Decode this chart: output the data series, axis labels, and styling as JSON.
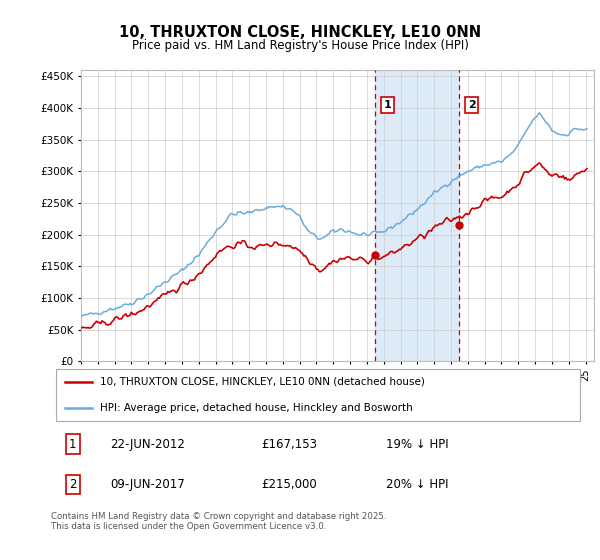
{
  "title": "10, THRUXTON CLOSE, HINCKLEY, LE10 0NN",
  "subtitle": "Price paid vs. HM Land Registry's House Price Index (HPI)",
  "ylim": [
    0,
    460000
  ],
  "yticks": [
    0,
    50000,
    100000,
    150000,
    200000,
    250000,
    300000,
    350000,
    400000,
    450000
  ],
  "ytick_labels": [
    "£0",
    "£50K",
    "£100K",
    "£150K",
    "£200K",
    "£250K",
    "£300K",
    "£350K",
    "£400K",
    "£450K"
  ],
  "background_color": "#ffffff",
  "grid_color": "#cccccc",
  "hpi_color": "#6aabdc",
  "price_color": "#cc0000",
  "shade_color": "#ddeaf7",
  "transaction1_date": "22-JUN-2012",
  "transaction1_price": 167153,
  "transaction1_label": "19% ↓ HPI",
  "transaction2_date": "09-JUN-2017",
  "transaction2_price": 215000,
  "transaction2_label": "20% ↓ HPI",
  "legend_line1": "10, THRUXTON CLOSE, HINCKLEY, LE10 0NN (detached house)",
  "legend_line2": "HPI: Average price, detached house, Hinckley and Bosworth",
  "footer": "Contains HM Land Registry data © Crown copyright and database right 2025.\nThis data is licensed under the Open Government Licence v3.0.",
  "marker1_year": 2012.5,
  "marker1_value": 167153,
  "marker2_year": 2017.5,
  "marker2_value": 215000,
  "xmin": 1995,
  "xmax": 2025.5
}
